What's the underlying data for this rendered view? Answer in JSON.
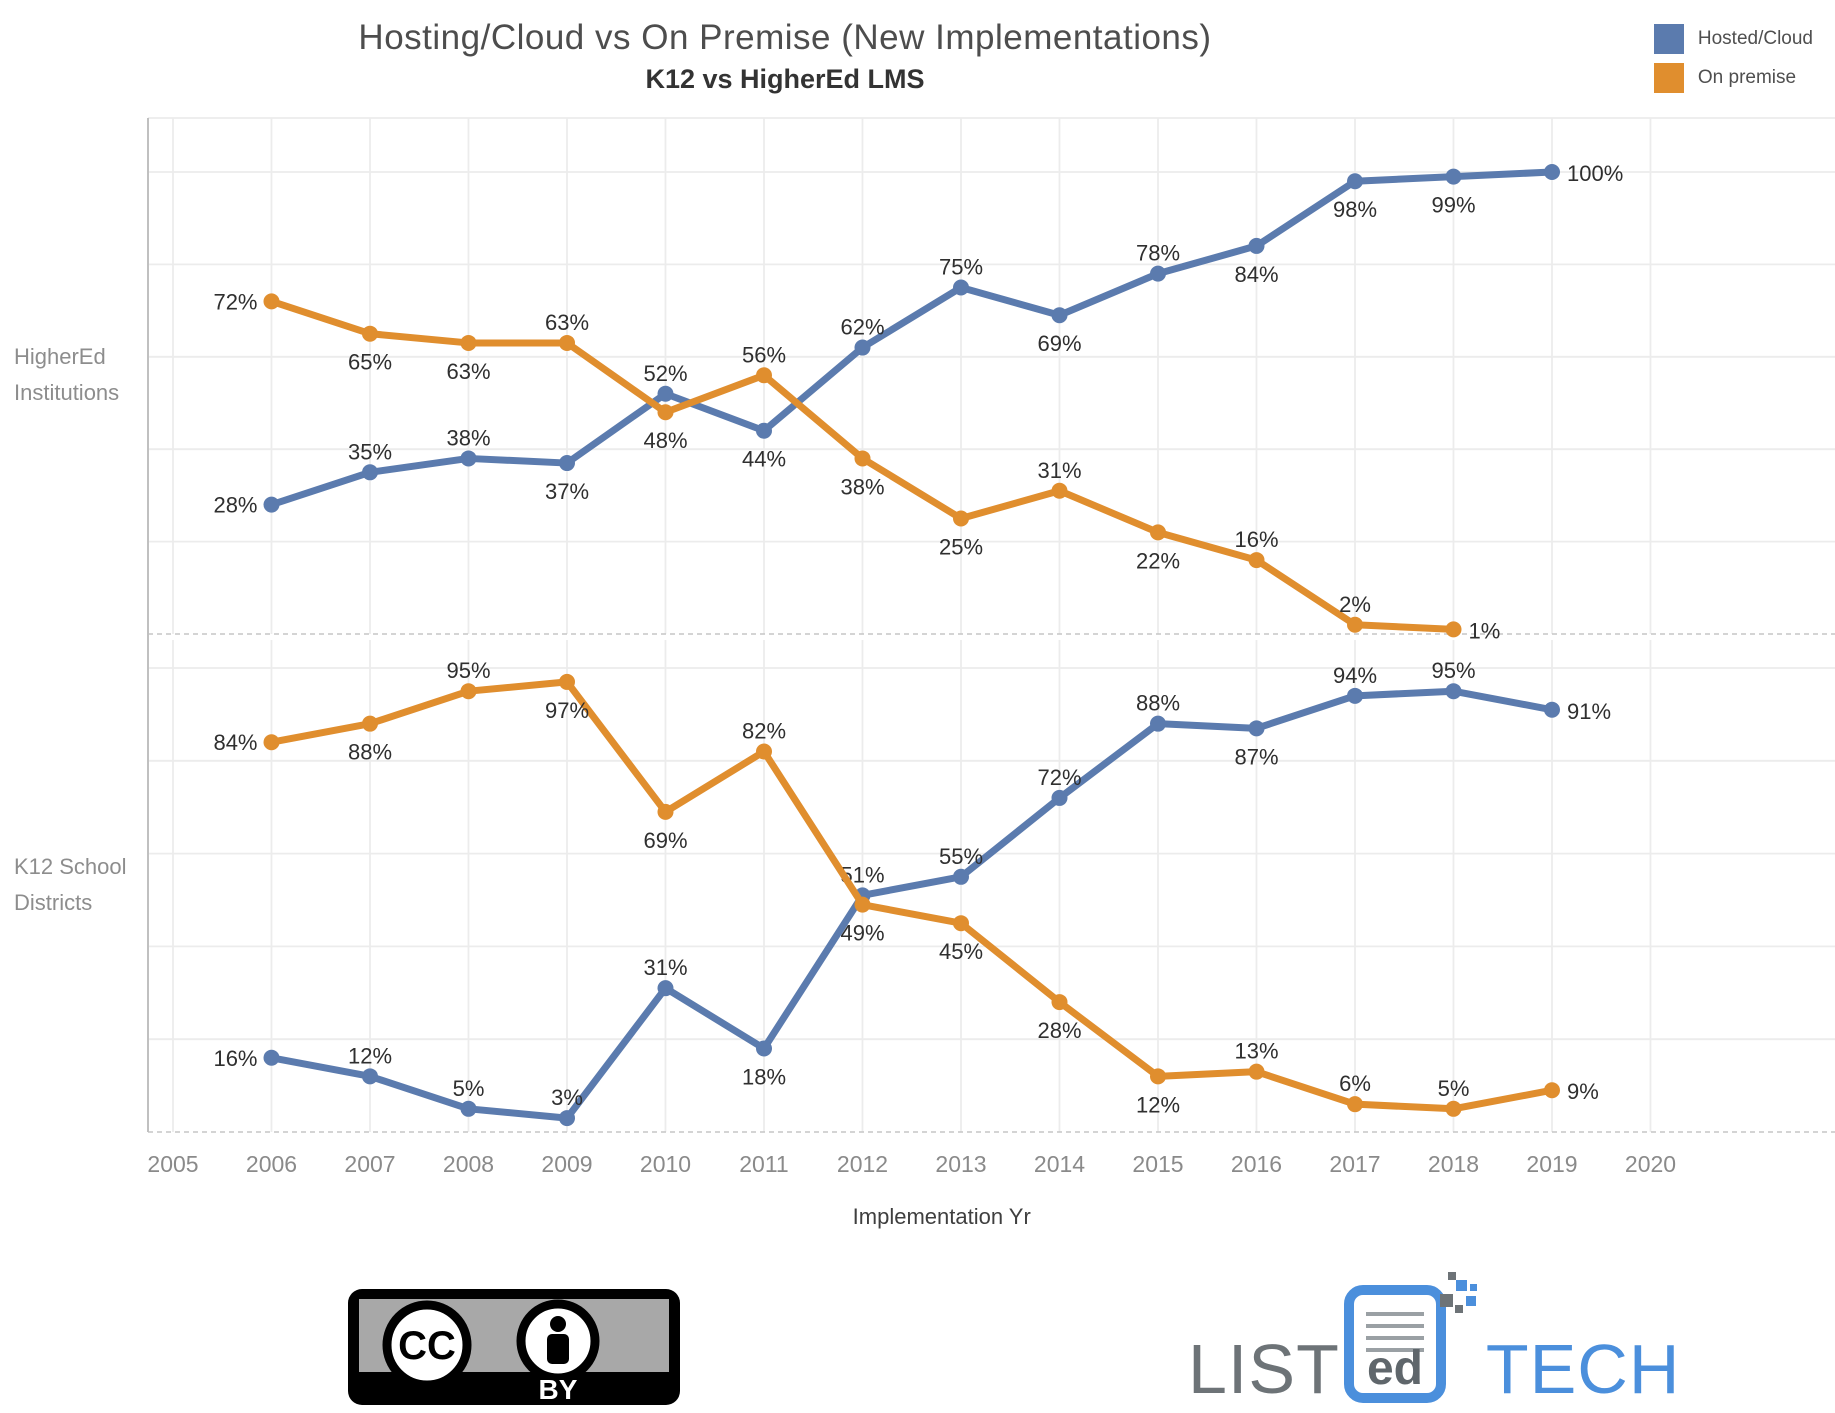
{
  "title": "Hosting/Cloud vs On Premise (New Implementations)",
  "subtitle": "K12 vs HigherEd LMS",
  "legend": {
    "position": "top-right",
    "items": [
      {
        "label": "Hosted/Cloud",
        "color": "#5b7bae"
      },
      {
        "label": "On premise",
        "color": "#e08e2e"
      }
    ]
  },
  "axis": {
    "xlabel": "Implementation Yr",
    "tick_color": "#8a8a8a",
    "grid": "on"
  },
  "chart_data": {
    "type": "line",
    "x": [
      2006,
      2007,
      2008,
      2009,
      2010,
      2011,
      2012,
      2013,
      2014,
      2015,
      2016,
      2017,
      2018,
      2019
    ],
    "x_axis_ticks": [
      2005,
      2006,
      2007,
      2008,
      2009,
      2010,
      2011,
      2012,
      2013,
      2014,
      2015,
      2016,
      2017,
      2018,
      2019,
      2020
    ],
    "xlim": [
      2005,
      2020
    ],
    "ylim": [
      0,
      100
    ],
    "y_grid_step_percent": 20,
    "legend_position": "top-right",
    "panels": [
      {
        "row_label": "HigherEd Institutions",
        "row_label_lines": [
          "HigherEd",
          "Institutions"
        ],
        "series": [
          {
            "name": "Hosted/Cloud",
            "color": "#5b7bae",
            "values": [
              28,
              35,
              38,
              37,
              52,
              44,
              62,
              75,
              69,
              78,
              84,
              98,
              99,
              100
            ],
            "label_pos": [
              "left",
              "above",
              "above",
              "below",
              "above",
              "below",
              "above",
              "above",
              "below",
              "above",
              "below",
              "below",
              "below",
              "right"
            ]
          },
          {
            "name": "On premise",
            "color": "#e08e2e",
            "values": [
              72,
              65,
              63,
              63,
              48,
              56,
              38,
              25,
              31,
              22,
              16,
              2,
              1,
              null
            ],
            "label_pos": [
              "left",
              "below",
              "below",
              "above",
              "below",
              "above",
              "below",
              "below",
              "above",
              "below",
              "above",
              "above",
              "right",
              "above"
            ]
          }
        ]
      },
      {
        "row_label": "K12 School Districts",
        "row_label_lines": [
          "K12 School",
          "Districts"
        ],
        "series": [
          {
            "name": "Hosted/Cloud",
            "color": "#5b7bae",
            "values": [
              16,
              12,
              5,
              3,
              31,
              18,
              51,
              55,
              72,
              88,
              87,
              94,
              95,
              91
            ],
            "label_pos": [
              "left",
              "above",
              "above",
              "above",
              "above",
              "below",
              "above",
              "above",
              "above",
              "above",
              "below",
              "above",
              "above",
              "right"
            ]
          },
          {
            "name": "On premise",
            "color": "#e08e2e",
            "values": [
              84,
              88,
              95,
              97,
              69,
              82,
              49,
              45,
              28,
              12,
              13,
              6,
              5,
              9
            ],
            "label_pos": [
              "left",
              "below",
              "above",
              "below",
              "below",
              "above",
              "below",
              "below",
              "below",
              "below",
              "above",
              "above",
              "above",
              "right"
            ]
          }
        ]
      }
    ]
  },
  "footer": {
    "cc_badge": {
      "circle1": "CC",
      "person_icon": "attribution-person",
      "license": "BY"
    },
    "listedtech_logo": {
      "part1": "LIST",
      "part2": "ed",
      "part3": "TECH",
      "gray": "#6d7377",
      "blue": "#4b8fdc"
    }
  },
  "style_colors": {
    "label_text": "#2f2f2f",
    "tick_text": "#8a8a8a",
    "row_label_text": "#8d8d8d",
    "gridline": "#ececec",
    "dashed_baseline": "#c6c6c6",
    "panel_border": "#c0c0c0",
    "title": "#4d4d4d",
    "subtitle": "#333333"
  }
}
